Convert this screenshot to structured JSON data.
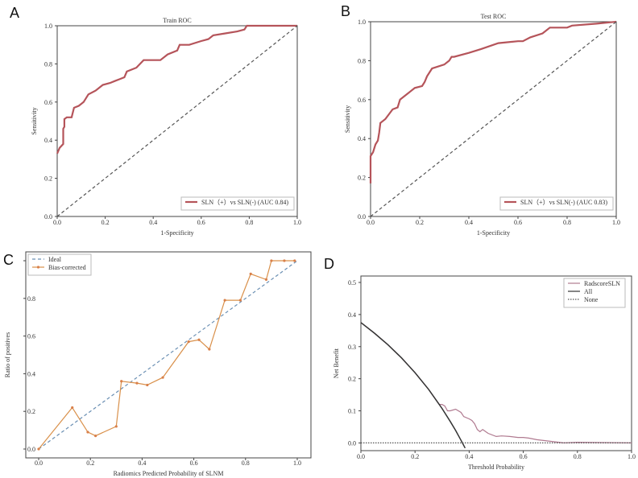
{
  "chart_data": [
    {
      "panel": "A",
      "type": "line",
      "title": "Train ROC",
      "xlabel": "1-Specificity",
      "ylabel": "Sensitivity",
      "xlim": [
        0,
        1
      ],
      "ylim": [
        0,
        1
      ],
      "xticks": [
        "0.0",
        "0.2",
        "0.4",
        "0.6",
        "0.8",
        "1.0"
      ],
      "yticks": [
        "0.0",
        "0.2",
        "0.4",
        "0.6",
        "0.8",
        "1.0"
      ],
      "legend_position": "lower-right",
      "series": [
        {
          "name": "SLN（+）vs SLN(-)  (AUC 0.84)",
          "color": "#b5545a",
          "style": "solid",
          "x": [
            0,
            0.01,
            0.025,
            0.025,
            0.03,
            0.03,
            0.04,
            0.06,
            0.07,
            0.09,
            0.11,
            0.13,
            0.16,
            0.19,
            0.22,
            0.24,
            0.26,
            0.28,
            0.29,
            0.33,
            0.36,
            0.43,
            0.46,
            0.5,
            0.51,
            0.55,
            0.6,
            0.63,
            0.65,
            0.7,
            0.75,
            0.78,
            0.79,
            1
          ],
          "y": [
            0.33,
            0.36,
            0.38,
            0.46,
            0.47,
            0.51,
            0.52,
            0.52,
            0.57,
            0.58,
            0.6,
            0.64,
            0.66,
            0.69,
            0.7,
            0.71,
            0.72,
            0.73,
            0.76,
            0.78,
            0.82,
            0.82,
            0.85,
            0.87,
            0.9,
            0.9,
            0.92,
            0.93,
            0.95,
            0.96,
            0.97,
            0.98,
            1.0,
            1.0
          ]
        },
        {
          "name": "chance",
          "color": "#555555",
          "style": "dashed",
          "x": [
            0,
            1
          ],
          "y": [
            0,
            1
          ]
        }
      ]
    },
    {
      "panel": "B",
      "type": "line",
      "title": "Test ROC",
      "xlabel": "1-Specificity",
      "ylabel": "Sensitivity",
      "xlim": [
        0,
        1
      ],
      "ylim": [
        0,
        1
      ],
      "xticks": [
        "0.0",
        "0.2",
        "0.4",
        "0.6",
        "0.8",
        "1.0"
      ],
      "yticks": [
        "0.0",
        "0.2",
        "0.4",
        "0.6",
        "0.8",
        "1.0"
      ],
      "legend_position": "lower-right",
      "series": [
        {
          "name": "SLN（+）vs SLN(-)  (AUC 0.83)",
          "color": "#b5545a",
          "style": "solid",
          "x": [
            0,
            0,
            0.01,
            0.02,
            0.03,
            0.035,
            0.04,
            0.06,
            0.09,
            0.11,
            0.12,
            0.15,
            0.18,
            0.21,
            0.22,
            0.23,
            0.25,
            0.3,
            0.32,
            0.33,
            0.34,
            0.4,
            0.45,
            0.52,
            0.6,
            0.62,
            0.65,
            0.7,
            0.73,
            0.8,
            0.82,
            0.92,
            1
          ],
          "y": [
            0.17,
            0.31,
            0.33,
            0.37,
            0.39,
            0.43,
            0.48,
            0.5,
            0.55,
            0.56,
            0.6,
            0.63,
            0.66,
            0.67,
            0.69,
            0.72,
            0.76,
            0.78,
            0.8,
            0.82,
            0.82,
            0.84,
            0.86,
            0.89,
            0.9,
            0.9,
            0.92,
            0.94,
            0.97,
            0.97,
            0.98,
            0.99,
            1.0
          ]
        },
        {
          "name": "chance",
          "color": "#555555",
          "style": "dashed",
          "x": [
            0,
            1
          ],
          "y": [
            0,
            1
          ]
        }
      ]
    },
    {
      "panel": "C",
      "type": "line",
      "title": "",
      "xlabel": "Radiomics Predicted Probability of SLNM",
      "ylabel": "Ratio of positives",
      "xlim": [
        0,
        1
      ],
      "ylim": [
        0,
        1
      ],
      "xticks": [
        "0.0",
        "0.2",
        "0.4",
        "0.6",
        "0.8",
        "1.0"
      ],
      "yticks": [
        "0.0",
        "0.2",
        "0.4",
        "0.6",
        "0.8",
        "1.0"
      ],
      "legend_position": "upper-left",
      "series": [
        {
          "name": "Ideal",
          "color": "#6a8fb3",
          "style": "dashed",
          "x": [
            0,
            1
          ],
          "y": [
            0,
            1
          ]
        },
        {
          "name": "Bias-corrected",
          "color": "#d9904a",
          "style": "solid",
          "markers": true,
          "x": [
            0,
            0.13,
            0.19,
            0.22,
            0.3,
            0.32,
            0.38,
            0.42,
            0.48,
            0.58,
            0.62,
            0.66,
            0.72,
            0.78,
            0.82,
            0.88,
            0.9,
            0.95,
            0.99
          ],
          "y": [
            0,
            0.22,
            0.09,
            0.07,
            0.12,
            0.36,
            0.35,
            0.34,
            0.38,
            0.57,
            0.58,
            0.53,
            0.79,
            0.79,
            0.93,
            0.9,
            1.0,
            1.0,
            1.0
          ]
        }
      ]
    },
    {
      "panel": "D",
      "type": "line",
      "title": "",
      "xlabel": "Threshold Probability",
      "ylabel": "Net Benefit",
      "xlim": [
        0,
        1
      ],
      "ylim": [
        -0.024,
        0.52
      ],
      "xticks": [
        "0.0",
        "0.2",
        "0.4",
        "0.6",
        "0.8",
        "1.0"
      ],
      "yticks": [
        "0.0",
        "0.1",
        "0.2",
        "0.3",
        "0.4",
        "0.5"
      ],
      "legend_position": "upper-right",
      "series": [
        {
          "name": "RadscoreSLN",
          "color": "#b07a90",
          "style": "solid",
          "x": [
            0,
            0.05,
            0.1,
            0.15,
            0.2,
            0.25,
            0.29,
            0.3,
            0.31,
            0.32,
            0.33,
            0.35,
            0.37,
            0.38,
            0.4,
            0.41,
            0.42,
            0.43,
            0.44,
            0.45,
            0.47,
            0.5,
            0.52,
            0.55,
            0.58,
            0.6,
            0.62,
            0.65,
            0.7,
            0.75,
            0.8,
            0.9,
            1.0
          ],
          "y": [
            0.375,
            0.342,
            0.306,
            0.265,
            0.219,
            0.167,
            0.12,
            0.12,
            0.115,
            0.1,
            0.1,
            0.105,
            0.095,
            0.082,
            0.075,
            0.07,
            0.06,
            0.042,
            0.035,
            0.042,
            0.03,
            0.02,
            0.022,
            0.02,
            0.017,
            0.017,
            0.015,
            0.01,
            0.005,
            0.0,
            0.002,
            0.001,
            0.0
          ]
        },
        {
          "name": "All",
          "color": "#333333",
          "style": "solid",
          "x": [
            0,
            0.05,
            0.1,
            0.15,
            0.2,
            0.25,
            0.3,
            0.33,
            0.35,
            0.37,
            0.385
          ],
          "y": [
            0.375,
            0.342,
            0.306,
            0.265,
            0.219,
            0.167,
            0.107,
            0.067,
            0.039,
            0.008,
            -0.016
          ]
        },
        {
          "name": "None",
          "color": "#555555",
          "style": "dotted",
          "x": [
            0,
            1
          ],
          "y": [
            0,
            0
          ]
        }
      ]
    }
  ]
}
